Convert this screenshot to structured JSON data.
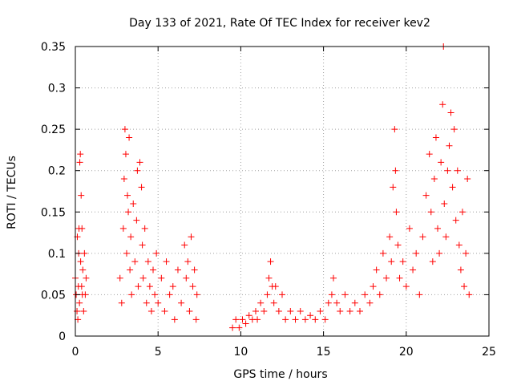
{
  "chart_data": {
    "type": "scatter",
    "title": "Day 133 of 2021, Rate Of TEC Index for receiver kev2",
    "xlabel": "GPS time / hours",
    "ylabel": "ROTI / TECUs",
    "xlim": [
      0,
      25
    ],
    "ylim": [
      0,
      0.35
    ],
    "xticks": [
      0,
      5,
      10,
      15,
      20,
      25
    ],
    "yticks": [
      0,
      0.05,
      0.1,
      0.15,
      0.2,
      0.25,
      0.3,
      0.35
    ],
    "xtick_labels": [
      "0",
      "5",
      "10",
      "15",
      "20",
      "25"
    ],
    "ytick_labels": [
      "0",
      "0.05",
      "0.1",
      "0.15",
      "0.2",
      "0.25",
      "0.3",
      "0.35"
    ],
    "grid": true,
    "marker": "+",
    "marker_color": "#ff0000",
    "series": [
      {
        "points": [
          [
            0.0,
            0.07
          ],
          [
            0.05,
            0.05
          ],
          [
            0.1,
            0.03
          ],
          [
            0.12,
            0.12
          ],
          [
            0.15,
            0.02
          ],
          [
            0.18,
            0.06
          ],
          [
            0.2,
            0.1
          ],
          [
            0.22,
            0.13
          ],
          [
            0.25,
            0.04
          ],
          [
            0.27,
            0.21
          ],
          [
            0.3,
            0.22
          ],
          [
            0.32,
            0.09
          ],
          [
            0.35,
            0.17
          ],
          [
            0.38,
            0.06
          ],
          [
            0.4,
            0.13
          ],
          [
            0.42,
            0.05
          ],
          [
            0.45,
            0.08
          ],
          [
            0.5,
            0.03
          ],
          [
            0.55,
            0.1
          ],
          [
            0.6,
            0.05
          ],
          [
            0.65,
            0.07
          ],
          [
            2.7,
            0.07
          ],
          [
            2.8,
            0.04
          ],
          [
            2.9,
            0.13
          ],
          [
            2.95,
            0.19
          ],
          [
            3.0,
            0.25
          ],
          [
            3.05,
            0.22
          ],
          [
            3.1,
            0.1
          ],
          [
            3.15,
            0.17
          ],
          [
            3.2,
            0.15
          ],
          [
            3.25,
            0.24
          ],
          [
            3.3,
            0.08
          ],
          [
            3.35,
            0.12
          ],
          [
            3.4,
            0.05
          ],
          [
            3.5,
            0.16
          ],
          [
            3.6,
            0.09
          ],
          [
            3.7,
            0.14
          ],
          [
            3.75,
            0.2
          ],
          [
            3.8,
            0.06
          ],
          [
            3.9,
            0.21
          ],
          [
            4.0,
            0.18
          ],
          [
            4.05,
            0.11
          ],
          [
            4.1,
            0.07
          ],
          [
            4.2,
            0.13
          ],
          [
            4.3,
            0.04
          ],
          [
            4.4,
            0.09
          ],
          [
            4.5,
            0.06
          ],
          [
            4.6,
            0.03
          ],
          [
            4.7,
            0.08
          ],
          [
            4.8,
            0.05
          ],
          [
            4.9,
            0.1
          ],
          [
            5.0,
            0.04
          ],
          [
            5.2,
            0.07
          ],
          [
            5.4,
            0.03
          ],
          [
            5.5,
            0.09
          ],
          [
            5.7,
            0.05
          ],
          [
            5.9,
            0.06
          ],
          [
            6.0,
            0.02
          ],
          [
            6.2,
            0.08
          ],
          [
            6.4,
            0.04
          ],
          [
            6.6,
            0.11
          ],
          [
            6.7,
            0.07
          ],
          [
            6.8,
            0.09
          ],
          [
            6.9,
            0.03
          ],
          [
            7.0,
            0.12
          ],
          [
            7.1,
            0.06
          ],
          [
            7.2,
            0.08
          ],
          [
            7.3,
            0.02
          ],
          [
            7.35,
            0.05
          ],
          [
            9.5,
            0.01
          ],
          [
            9.7,
            0.02
          ],
          [
            9.9,
            0.01
          ],
          [
            10.1,
            0.02
          ],
          [
            10.3,
            0.015
          ],
          [
            10.5,
            0.025
          ],
          [
            10.7,
            0.02
          ],
          [
            10.9,
            0.03
          ],
          [
            11.0,
            0.02
          ],
          [
            11.2,
            0.04
          ],
          [
            11.4,
            0.03
          ],
          [
            11.6,
            0.05
          ],
          [
            11.7,
            0.07
          ],
          [
            11.8,
            0.09
          ],
          [
            11.9,
            0.06
          ],
          [
            12.0,
            0.04
          ],
          [
            12.1,
            0.06
          ],
          [
            12.3,
            0.03
          ],
          [
            12.5,
            0.05
          ],
          [
            12.7,
            0.02
          ],
          [
            13.0,
            0.03
          ],
          [
            13.3,
            0.02
          ],
          [
            13.6,
            0.03
          ],
          [
            13.9,
            0.02
          ],
          [
            14.2,
            0.025
          ],
          [
            14.5,
            0.02
          ],
          [
            14.8,
            0.03
          ],
          [
            15.1,
            0.02
          ],
          [
            15.3,
            0.04
          ],
          [
            15.5,
            0.05
          ],
          [
            15.6,
            0.07
          ],
          [
            15.8,
            0.04
          ],
          [
            16.0,
            0.03
          ],
          [
            16.3,
            0.05
          ],
          [
            16.6,
            0.03
          ],
          [
            16.9,
            0.04
          ],
          [
            17.2,
            0.03
          ],
          [
            17.5,
            0.05
          ],
          [
            17.8,
            0.04
          ],
          [
            18.0,
            0.06
          ],
          [
            18.2,
            0.08
          ],
          [
            18.4,
            0.05
          ],
          [
            18.6,
            0.1
          ],
          [
            18.8,
            0.07
          ],
          [
            19.0,
            0.12
          ],
          [
            19.1,
            0.09
          ],
          [
            19.2,
            0.18
          ],
          [
            19.3,
            0.25
          ],
          [
            19.35,
            0.2
          ],
          [
            19.4,
            0.15
          ],
          [
            19.5,
            0.11
          ],
          [
            19.6,
            0.07
          ],
          [
            19.8,
            0.09
          ],
          [
            20.0,
            0.06
          ],
          [
            20.2,
            0.13
          ],
          [
            20.4,
            0.08
          ],
          [
            20.6,
            0.1
          ],
          [
            20.8,
            0.05
          ],
          [
            21.0,
            0.12
          ],
          [
            21.2,
            0.17
          ],
          [
            21.4,
            0.22
          ],
          [
            21.5,
            0.15
          ],
          [
            21.6,
            0.09
          ],
          [
            21.7,
            0.19
          ],
          [
            21.8,
            0.24
          ],
          [
            21.9,
            0.13
          ],
          [
            22.0,
            0.1
          ],
          [
            22.1,
            0.21
          ],
          [
            22.2,
            0.28
          ],
          [
            22.25,
            0.35
          ],
          [
            22.3,
            0.16
          ],
          [
            22.4,
            0.12
          ],
          [
            22.5,
            0.2
          ],
          [
            22.6,
            0.23
          ],
          [
            22.7,
            0.27
          ],
          [
            22.8,
            0.18
          ],
          [
            22.9,
            0.25
          ],
          [
            23.0,
            0.14
          ],
          [
            23.1,
            0.2
          ],
          [
            23.2,
            0.11
          ],
          [
            23.3,
            0.08
          ],
          [
            23.4,
            0.15
          ],
          [
            23.5,
            0.06
          ],
          [
            23.6,
            0.1
          ],
          [
            23.7,
            0.19
          ],
          [
            23.8,
            0.05
          ]
        ]
      }
    ]
  }
}
